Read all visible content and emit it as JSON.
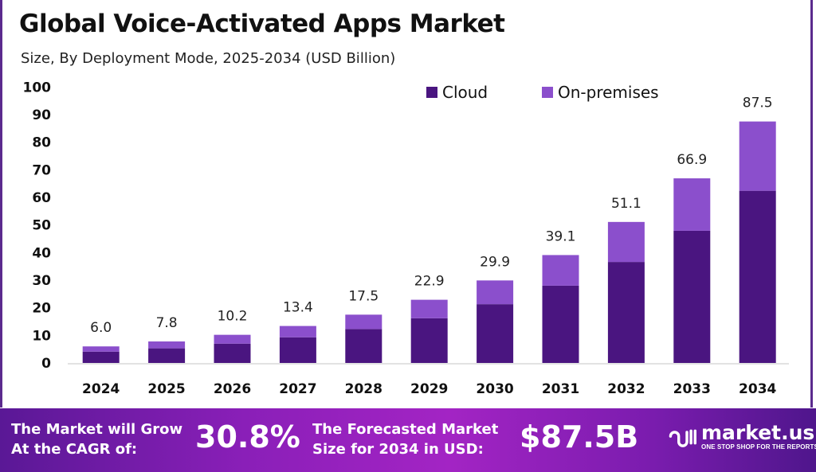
{
  "chart_data": {
    "type": "bar",
    "stacked": true,
    "title": "Global Voice-Activated Apps Market",
    "subtitle": "Size, By Deployment Mode, 2025-2034 (USD Billion)",
    "categories": [
      "2024",
      "2025",
      "2026",
      "2027",
      "2028",
      "2029",
      "2030",
      "2031",
      "2032",
      "2033",
      "2034"
    ],
    "series": [
      {
        "name": "Cloud",
        "color": "#4a1580",
        "values": [
          4.1,
          5.3,
          7.0,
          9.3,
          12.3,
          16.2,
          21.3,
          28.0,
          36.6,
          47.9,
          62.4
        ]
      },
      {
        "name": "On-premises",
        "color": "#8b4fcc",
        "values": [
          1.9,
          2.5,
          3.2,
          4.1,
          5.2,
          6.7,
          8.6,
          11.1,
          14.5,
          19.0,
          25.1
        ]
      }
    ],
    "totals": [
      "6.0",
      "7.8",
      "10.2",
      "13.4",
      "17.5",
      "22.9",
      "29.9",
      "39.1",
      "51.1",
      "66.9",
      "87.5"
    ],
    "ylim": [
      0,
      100
    ],
    "yticks": [
      "0",
      "10",
      "20",
      "30",
      "40",
      "50",
      "60",
      "70",
      "80",
      "90",
      "100"
    ],
    "grid": false,
    "legend_position": "top-right"
  },
  "banner": {
    "cagr_label_1": "The Market will Grow",
    "cagr_label_2": "At the CAGR of:",
    "cagr_value": "30.8%",
    "forecast_label_1": "The Forecasted Market",
    "forecast_label_2": "Size for 2034 in USD:",
    "forecast_value": "$87.5B",
    "logo_name": "market.us",
    "logo_tagline": "ONE STOP SHOP FOR THE REPORTS"
  }
}
